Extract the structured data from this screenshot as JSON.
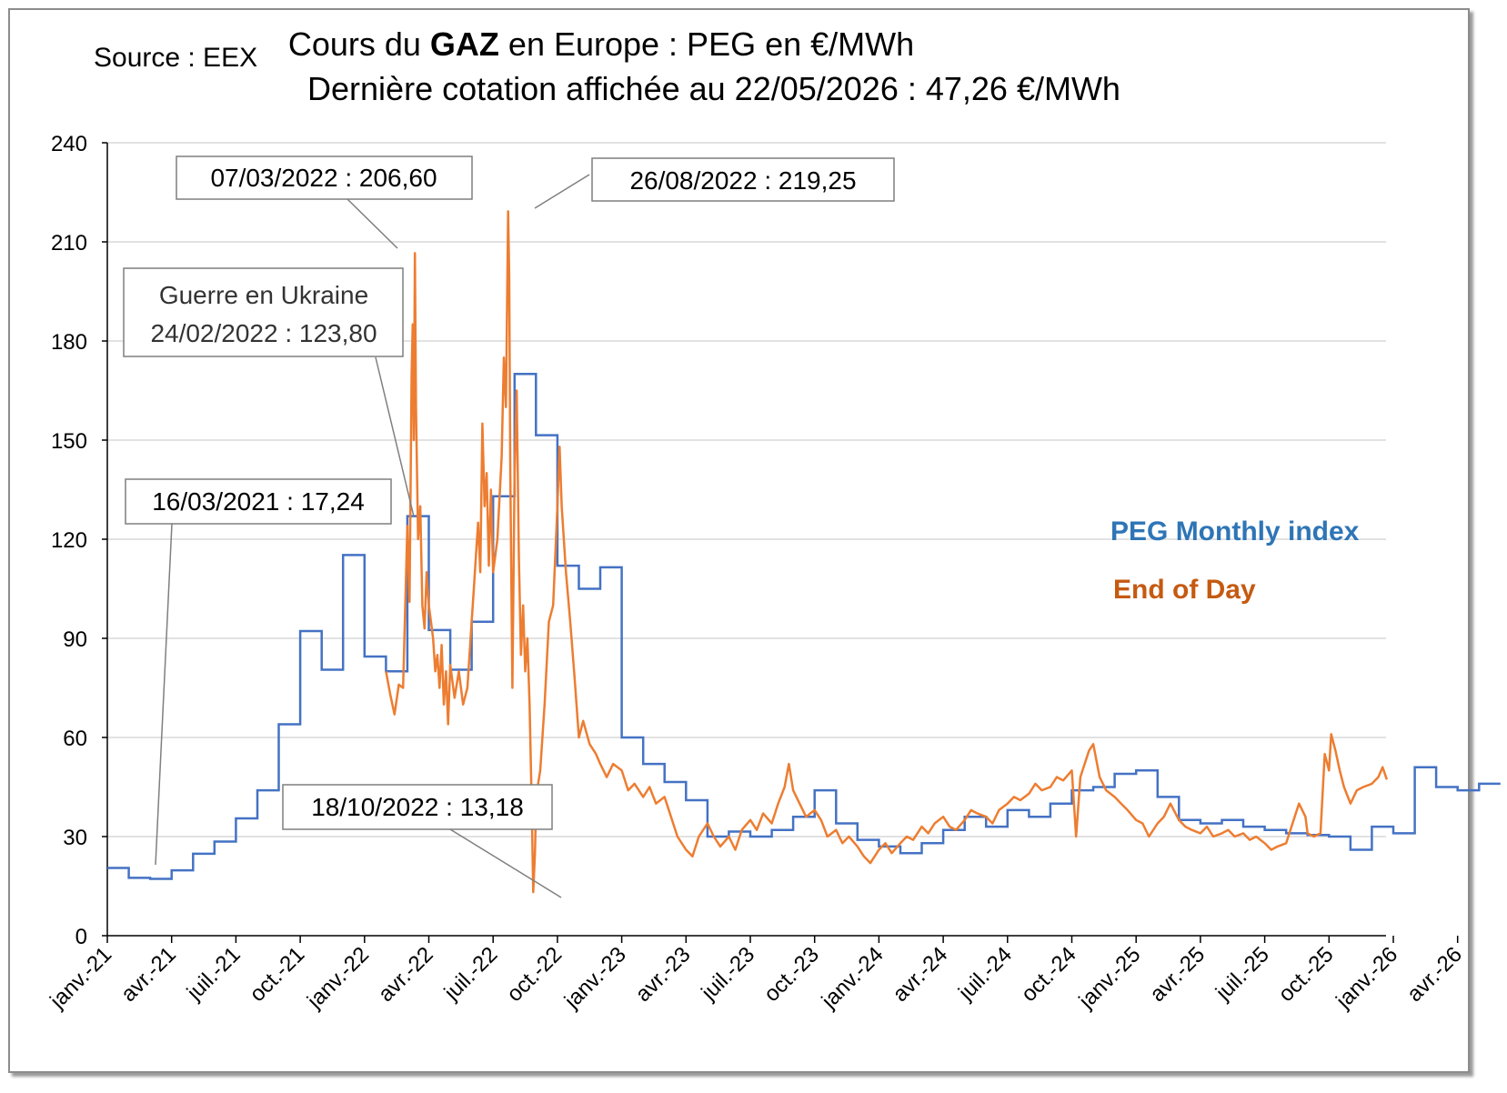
{
  "source": "Source : EEX",
  "title": {
    "line1_prefix": "Cours du ",
    "line1_bold": "GAZ",
    "line1_suffix": " en Europe : PEG en €/MWh",
    "line2": "Dernière cotation affichée au 22/05/2026 : 47,26 €/MWh"
  },
  "annotations": {
    "a1": "07/03/2022 : 206,60",
    "a2": "26/08/2022 : 219,25",
    "a3_line1": "Guerre en Ukraine",
    "a3_line2": "24/02/2022 : 123,80",
    "a4": "16/03/2021 : 17,24",
    "a5": "18/10/2022 : 13,18"
  },
  "colors": {
    "monthly": "#4472C4",
    "eod": "#ED7D31",
    "legend_monthly": "#2E75B6",
    "legend_eod": "#C55A11",
    "grid": "#d9d9d9"
  },
  "chart_data": {
    "type": "line",
    "x_unit": "month",
    "x_start": "2021-01",
    "xlim": [
      "2021-01",
      "2026-06"
    ],
    "ylim": [
      0,
      240
    ],
    "yticks": [
      0,
      30,
      60,
      90,
      120,
      150,
      180,
      210,
      240
    ],
    "xtick_labels": [
      "janv.-21",
      "avr.-21",
      "juil.-21",
      "oct.-21",
      "janv.-22",
      "avr.-22",
      "juil.-22",
      "oct.-22",
      "janv.-23",
      "avr.-23",
      "juil.-23",
      "oct.-23",
      "janv.-24",
      "avr.-24",
      "juil.-24",
      "oct.-24",
      "janv.-25",
      "avr.-25",
      "juil.-25",
      "oct.-25",
      "janv.-26",
      "avr.-26"
    ],
    "series": [
      {
        "name": "PEG Monthly index",
        "style": "step",
        "months": [
          "2021-01",
          "2021-02",
          "2021-03",
          "2021-04",
          "2021-05",
          "2021-06",
          "2021-07",
          "2021-08",
          "2021-09",
          "2021-10",
          "2021-11",
          "2021-12",
          "2022-01",
          "2022-02",
          "2022-03",
          "2022-04",
          "2022-05",
          "2022-06",
          "2022-07",
          "2022-08",
          "2022-09",
          "2022-10",
          "2022-11",
          "2022-12",
          "2023-01",
          "2023-02",
          "2023-03",
          "2023-04",
          "2023-05",
          "2023-06",
          "2023-07",
          "2023-08",
          "2023-09",
          "2023-10",
          "2023-11",
          "2023-12",
          "2024-01",
          "2024-02",
          "2024-03",
          "2024-04",
          "2024-05",
          "2024-06",
          "2024-07",
          "2024-08",
          "2024-09",
          "2024-10",
          "2024-11",
          "2024-12",
          "2025-01",
          "2025-02",
          "2025-03",
          "2025-04",
          "2025-05",
          "2025-06",
          "2025-07",
          "2025-08",
          "2025-09",
          "2025-10",
          "2025-11",
          "2025-12",
          "2026-01",
          "2026-02",
          "2026-03",
          "2026-04",
          "2026-05"
        ],
        "values": [
          20.5,
          17.5,
          17.2,
          19.8,
          24.8,
          28.5,
          35.5,
          44.0,
          64.0,
          92.2,
          80.5,
          115.2,
          84.5,
          80.0,
          127.0,
          92.5,
          80.5,
          95.0,
          133.0,
          170.0,
          151.5,
          112.0,
          105.0,
          111.5,
          60.0,
          52.0,
          46.5,
          41.0,
          30.0,
          31.5,
          30.0,
          32.0,
          36.0,
          44.0,
          34.0,
          29.0,
          27.0,
          25.0,
          28.0,
          32.0,
          36.0,
          33.0,
          38.0,
          36.0,
          40.0,
          44.0,
          45.0,
          49.0,
          50.0,
          42.0,
          35.0,
          34.0,
          35.0,
          33.0,
          32.0,
          31.0,
          30.5,
          30.0,
          26.0,
          33.0,
          31.0,
          51.0,
          45.0,
          44.0,
          46.0
        ]
      },
      {
        "name": "End of Day",
        "style": "line",
        "points": [
          [
            13.0,
            80
          ],
          [
            13.2,
            73
          ],
          [
            13.4,
            67
          ],
          [
            13.6,
            76
          ],
          [
            13.8,
            75
          ],
          [
            14.0,
            124
          ],
          [
            14.1,
            101
          ],
          [
            14.2,
            170
          ],
          [
            14.25,
            185
          ],
          [
            14.3,
            150
          ],
          [
            14.35,
            206.6
          ],
          [
            14.4,
            160
          ],
          [
            14.5,
            120
          ],
          [
            14.6,
            130
          ],
          [
            14.7,
            100
          ],
          [
            14.8,
            93
          ],
          [
            14.9,
            110
          ],
          [
            15.0,
            100
          ],
          [
            15.1,
            95
          ],
          [
            15.2,
            90
          ],
          [
            15.3,
            80
          ],
          [
            15.4,
            85
          ],
          [
            15.5,
            75
          ],
          [
            15.6,
            88
          ],
          [
            15.7,
            70
          ],
          [
            15.8,
            80
          ],
          [
            15.9,
            64
          ],
          [
            16.0,
            82
          ],
          [
            16.2,
            72
          ],
          [
            16.4,
            80
          ],
          [
            16.6,
            70
          ],
          [
            16.8,
            75
          ],
          [
            17.0,
            95
          ],
          [
            17.1,
            105
          ],
          [
            17.2,
            115
          ],
          [
            17.3,
            125
          ],
          [
            17.4,
            110
          ],
          [
            17.5,
            155
          ],
          [
            17.6,
            130
          ],
          [
            17.7,
            140
          ],
          [
            17.8,
            112
          ],
          [
            17.9,
            135
          ],
          [
            18.0,
            110
          ],
          [
            18.2,
            120
          ],
          [
            18.4,
            145
          ],
          [
            18.5,
            175
          ],
          [
            18.6,
            160
          ],
          [
            18.7,
            219.25
          ],
          [
            18.75,
            200
          ],
          [
            18.8,
            140
          ],
          [
            18.9,
            75
          ],
          [
            19.0,
            140
          ],
          [
            19.1,
            165
          ],
          [
            19.2,
            115
          ],
          [
            19.3,
            85
          ],
          [
            19.4,
            100
          ],
          [
            19.5,
            80
          ],
          [
            19.6,
            90
          ],
          [
            19.7,
            70
          ],
          [
            19.8,
            40
          ],
          [
            19.87,
            13.18
          ],
          [
            19.95,
            25
          ],
          [
            20.0,
            38
          ],
          [
            20.1,
            46
          ],
          [
            20.2,
            50
          ],
          [
            20.4,
            70
          ],
          [
            20.6,
            95
          ],
          [
            20.8,
            100
          ],
          [
            21.0,
            130
          ],
          [
            21.1,
            148
          ],
          [
            21.2,
            130
          ],
          [
            21.4,
            110
          ],
          [
            21.6,
            95
          ],
          [
            21.8,
            78
          ],
          [
            22.0,
            60
          ],
          [
            22.2,
            65
          ],
          [
            22.5,
            58
          ],
          [
            22.8,
            55
          ],
          [
            23.0,
            52
          ],
          [
            23.3,
            48
          ],
          [
            23.6,
            52
          ],
          [
            24.0,
            50
          ],
          [
            24.3,
            44
          ],
          [
            24.6,
            46
          ],
          [
            25.0,
            42
          ],
          [
            25.3,
            45
          ],
          [
            25.6,
            40
          ],
          [
            26.0,
            42
          ],
          [
            26.3,
            36
          ],
          [
            26.6,
            30
          ],
          [
            27.0,
            26
          ],
          [
            27.3,
            24
          ],
          [
            27.6,
            30
          ],
          [
            28.0,
            34
          ],
          [
            28.3,
            30
          ],
          [
            28.6,
            27
          ],
          [
            29.0,
            30
          ],
          [
            29.3,
            26
          ],
          [
            29.6,
            32
          ],
          [
            30.0,
            35
          ],
          [
            30.3,
            32
          ],
          [
            30.6,
            37
          ],
          [
            31.0,
            34
          ],
          [
            31.3,
            40
          ],
          [
            31.6,
            45
          ],
          [
            31.8,
            52
          ],
          [
            32.0,
            44
          ],
          [
            32.3,
            40
          ],
          [
            32.6,
            36
          ],
          [
            33.0,
            38
          ],
          [
            33.3,
            35
          ],
          [
            33.6,
            30
          ],
          [
            34.0,
            32
          ],
          [
            34.3,
            28
          ],
          [
            34.6,
            30
          ],
          [
            35.0,
            27
          ],
          [
            35.3,
            24
          ],
          [
            35.6,
            22
          ],
          [
            36.0,
            26
          ],
          [
            36.3,
            28
          ],
          [
            36.6,
            25
          ],
          [
            37.0,
            28
          ],
          [
            37.3,
            30
          ],
          [
            37.6,
            29
          ],
          [
            38.0,
            33
          ],
          [
            38.3,
            31
          ],
          [
            38.6,
            34
          ],
          [
            39.0,
            36
          ],
          [
            39.3,
            33
          ],
          [
            39.6,
            32
          ],
          [
            40.0,
            35
          ],
          [
            40.3,
            38
          ],
          [
            40.6,
            37
          ],
          [
            41.0,
            36
          ],
          [
            41.3,
            34
          ],
          [
            41.6,
            38
          ],
          [
            42.0,
            40
          ],
          [
            42.3,
            42
          ],
          [
            42.6,
            41
          ],
          [
            43.0,
            43
          ],
          [
            43.3,
            46
          ],
          [
            43.6,
            44
          ],
          [
            44.0,
            45
          ],
          [
            44.3,
            48
          ],
          [
            44.6,
            47
          ],
          [
            45.0,
            50
          ],
          [
            45.2,
            30
          ],
          [
            45.4,
            48
          ],
          [
            45.6,
            52
          ],
          [
            45.8,
            56
          ],
          [
            46.0,
            58
          ],
          [
            46.3,
            48
          ],
          [
            46.6,
            44
          ],
          [
            47.0,
            42
          ],
          [
            47.3,
            40
          ],
          [
            47.6,
            38
          ],
          [
            48.0,
            35
          ],
          [
            48.3,
            34
          ],
          [
            48.6,
            30
          ],
          [
            49.0,
            34
          ],
          [
            49.3,
            36
          ],
          [
            49.6,
            40
          ],
          [
            50.0,
            35
          ],
          [
            50.3,
            33
          ],
          [
            50.6,
            32
          ],
          [
            51.0,
            31
          ],
          [
            51.3,
            33
          ],
          [
            51.6,
            30
          ],
          [
            52.0,
            31
          ],
          [
            52.3,
            32
          ],
          [
            52.6,
            30
          ],
          [
            53.0,
            31
          ],
          [
            53.3,
            29
          ],
          [
            53.6,
            30
          ],
          [
            54.0,
            28
          ],
          [
            54.3,
            26
          ],
          [
            54.6,
            27
          ],
          [
            55.0,
            28
          ],
          [
            55.3,
            34
          ],
          [
            55.6,
            40
          ],
          [
            55.9,
            36
          ],
          [
            56.0,
            31
          ],
          [
            56.3,
            30
          ],
          [
            56.6,
            31
          ],
          [
            56.8,
            55
          ],
          [
            57.0,
            50
          ],
          [
            57.1,
            61
          ],
          [
            57.3,
            56
          ],
          [
            57.5,
            50
          ],
          [
            57.7,
            45
          ],
          [
            58.0,
            40
          ],
          [
            58.3,
            44
          ],
          [
            58.6,
            45
          ],
          [
            59.0,
            46
          ],
          [
            59.3,
            48
          ],
          [
            59.5,
            51
          ],
          [
            59.7,
            47.26
          ]
        ]
      }
    ],
    "legend": [
      "PEG Monthly index",
      "End of Day"
    ],
    "legend_position": "right-middle",
    "grid": "horizontal"
  }
}
